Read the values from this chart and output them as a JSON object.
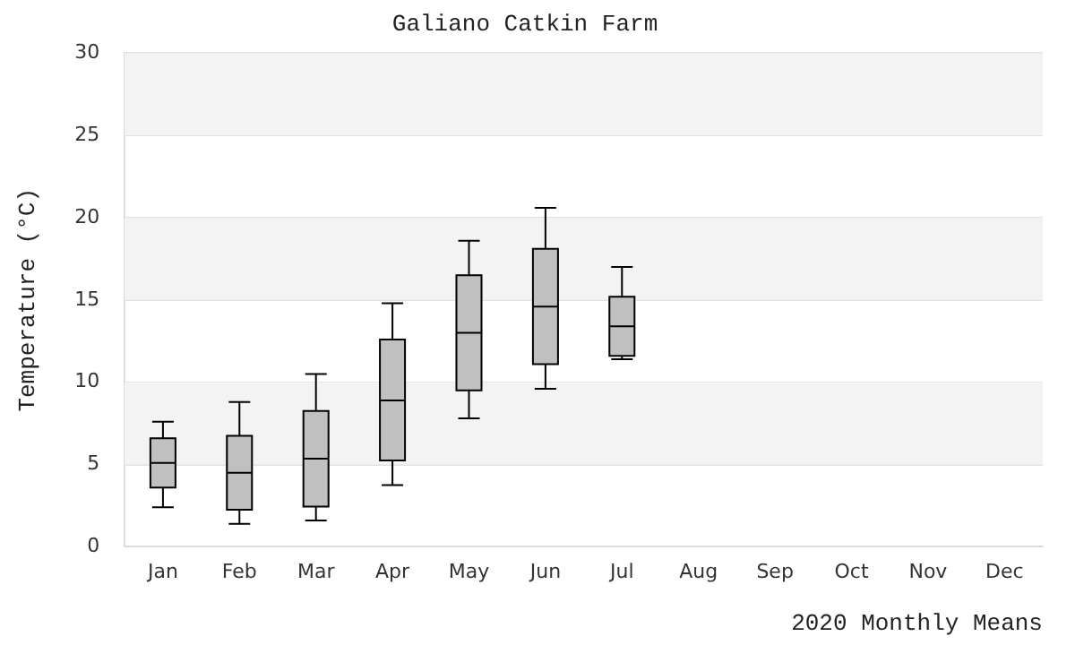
{
  "chart_data": {
    "type": "box",
    "title": "Galiano Catkin Farm",
    "xlabel": "2020 Monthly Means",
    "ylabel": "Temperature (°C)",
    "categories": [
      "Jan",
      "Feb",
      "Mar",
      "Apr",
      "May",
      "Jun",
      "Jul",
      "Aug",
      "Sep",
      "Oct",
      "Nov",
      "Dec"
    ],
    "color": "#c0c0c0",
    "boxes": [
      {
        "low": 2.4,
        "q1": 3.6,
        "median": 5.1,
        "q3": 6.6,
        "high": 7.6
      },
      {
        "low": 1.4,
        "q1": 2.25,
        "median": 4.5,
        "q3": 6.75,
        "high": 8.8
      },
      {
        "low": 1.6,
        "q1": 2.45,
        "median": 5.35,
        "q3": 8.25,
        "high": 10.5
      },
      {
        "low": 3.75,
        "q1": 5.25,
        "median": 8.9,
        "q3": 12.6,
        "high": 14.8
      },
      {
        "low": 7.8,
        "q1": 9.5,
        "median": 13.0,
        "q3": 16.5,
        "high": 18.6
      },
      {
        "low": 9.6,
        "q1": 11.1,
        "median": 14.6,
        "q3": 18.1,
        "high": 20.6
      },
      {
        "low": 11.4,
        "q1": 11.6,
        "median": 13.4,
        "q3": 15.2,
        "high": 17.0
      },
      null,
      null,
      null,
      null,
      null
    ],
    "ylim": [
      0,
      30
    ],
    "yticks": [
      0,
      5,
      10,
      15,
      20,
      25,
      30
    ],
    "grid": "y",
    "legend": false
  }
}
